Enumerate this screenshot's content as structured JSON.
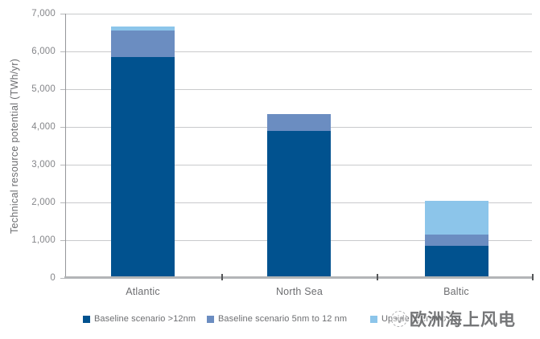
{
  "watermark": {
    "icon": "globe-logo-icon",
    "text": "欧洲海上风电"
  },
  "chart_data": {
    "type": "bar",
    "stacked": true,
    "ylabel": "Technical resource potential (TWh/yr)",
    "ylim": [
      0,
      7000
    ],
    "grid": true,
    "legend_position": "bottom",
    "categories": [
      "Atlantic",
      "North Sea",
      "Baltic"
    ],
    "series": [
      {
        "name": "Baseline scenario >12nm",
        "color": "#01528F",
        "values": [
          5850,
          3900,
          850
        ]
      },
      {
        "name": "Baseline scenario 5nm to 12 nm",
        "color": "#6B8DC1",
        "values": [
          700,
          450,
          300
        ]
      },
      {
        "name": "Upside scenario",
        "color": "#8CC5EA",
        "values": [
          100,
          0,
          900
        ]
      }
    ],
    "yticks": [
      {
        "value": 0,
        "label": "0"
      },
      {
        "value": 1000,
        "label": "1,000"
      },
      {
        "value": 2000,
        "label": "2,000"
      },
      {
        "value": 3000,
        "label": "3,000"
      },
      {
        "value": 4000,
        "label": "4,000"
      },
      {
        "value": 5000,
        "label": "5,000"
      },
      {
        "value": 6000,
        "label": "6,000"
      },
      {
        "value": 7000,
        "label": "7,000"
      }
    ]
  }
}
